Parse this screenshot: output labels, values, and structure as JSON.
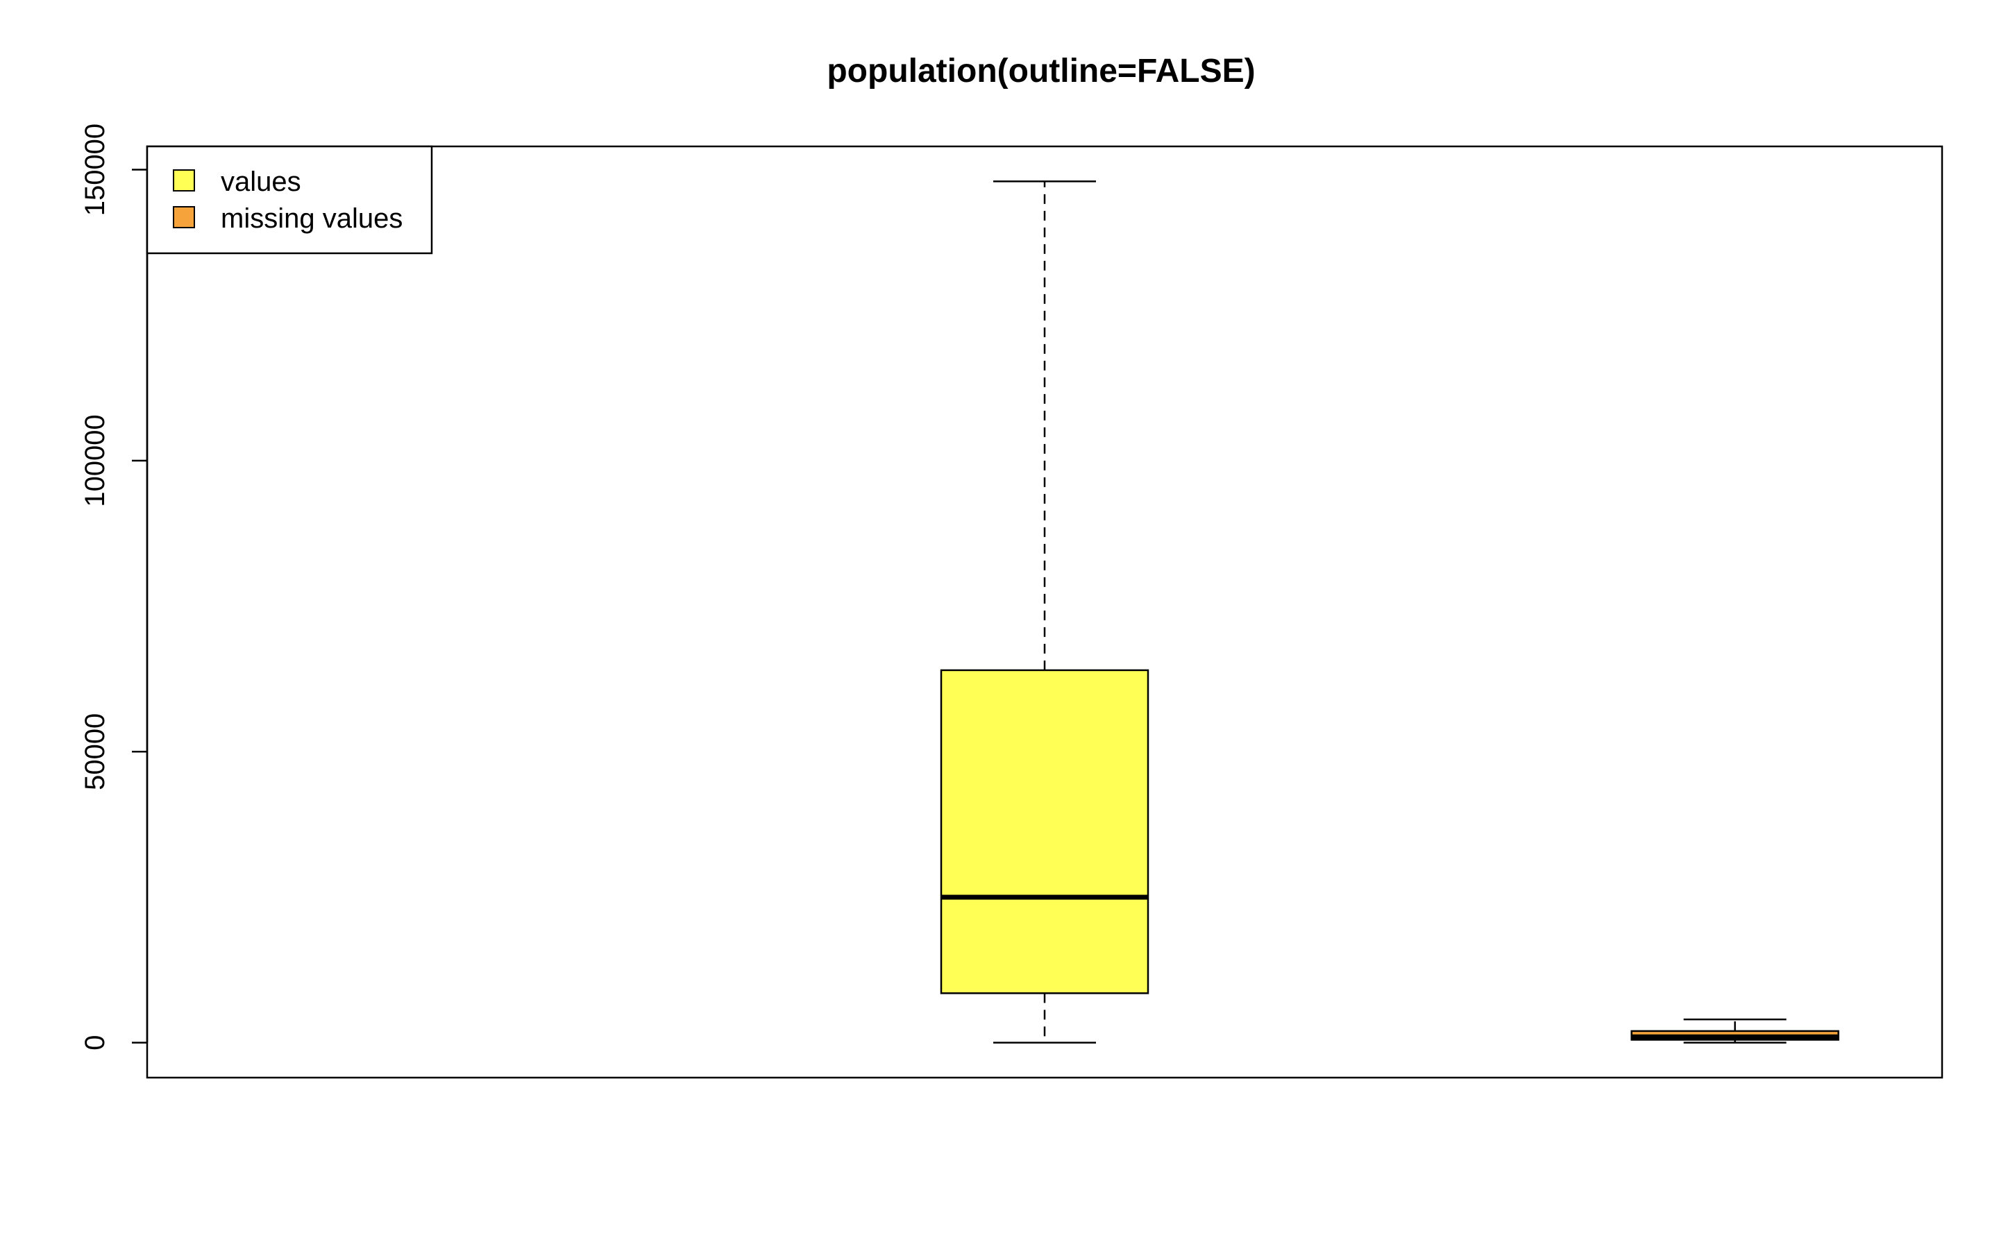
{
  "chart_data": {
    "type": "box",
    "title": "population(outline=FALSE)",
    "xlabel": "",
    "ylabel": "",
    "ylim": [
      -6000,
      154000
    ],
    "yticks": [
      0,
      50000,
      100000,
      150000
    ],
    "ytick_labels": [
      "0",
      "50000",
      "100000",
      "150000"
    ],
    "grid": false,
    "legend": {
      "position": "top-left",
      "entries": [
        {
          "label": "values",
          "color": "#FFFF55"
        },
        {
          "label": "missing values",
          "color": "#F5A33A"
        }
      ]
    },
    "series": [
      {
        "label": "values",
        "color": "#FFFF55",
        "x": 1,
        "whisker_low": 0,
        "q1": 8500,
        "median": 25000,
        "q3": 64000,
        "whisker_high": 148000
      },
      {
        "label": "missing values",
        "color": "#F5A33A",
        "x": 2,
        "whisker_low": 0,
        "q1": 500,
        "median": 1000,
        "q3": 2000,
        "whisker_high": 4000
      }
    ],
    "xlim": [
      -0.3,
      2.3
    ]
  }
}
